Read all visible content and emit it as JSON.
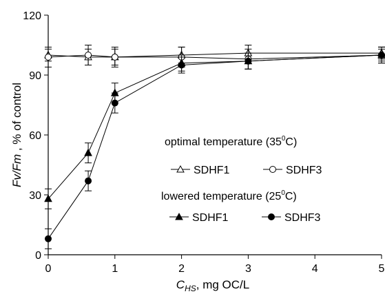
{
  "chart_data": {
    "type": "line",
    "xlabel": {
      "symbol": "C",
      "sub": "HS",
      "unit": ", mg OC/L"
    },
    "ylabel": {
      "part1": "Fv/Fm",
      "part2": " , % of control"
    },
    "xlim": [
      0,
      5
    ],
    "ylim": [
      0,
      120
    ],
    "xticks": [
      0,
      1,
      2,
      3,
      4,
      5
    ],
    "yticks": [
      0,
      30,
      60,
      90,
      120
    ],
    "xtick_labels": [
      "0",
      "1",
      "2",
      "3",
      "4",
      "5"
    ],
    "ytick_labels": [
      "0",
      "30",
      "60",
      "90",
      "120"
    ],
    "grid": false,
    "legend_placement": "center-right",
    "legend": {
      "group1_title": {
        "text": "optimal temperature (35",
        "sup": "0",
        "tail": "C)"
      },
      "group2_title": {
        "text": "lowered temperature (25",
        "sup": "0",
        "tail": "C)"
      }
    },
    "series": [
      {
        "name": "SDHF1",
        "group": "optimal",
        "marker": "triangle-open",
        "x": [
          0,
          0.6,
          1,
          2,
          3,
          5
        ],
        "y": [
          100,
          99,
          99,
          100,
          101,
          101
        ],
        "err": [
          3,
          4,
          4,
          4,
          4,
          3
        ]
      },
      {
        "name": "SDHF3",
        "group": "optimal",
        "marker": "circle-open",
        "x": [
          0,
          0.6,
          1,
          2,
          3,
          5
        ],
        "y": [
          99,
          100,
          99,
          99,
          98,
          100
        ],
        "err": [
          5,
          5,
          5,
          5,
          5,
          4
        ]
      },
      {
        "name": "SDHF1",
        "group": "lowered",
        "marker": "triangle-filled",
        "x": [
          0,
          0.6,
          1,
          2,
          3,
          5
        ],
        "y": [
          28,
          51,
          81,
          96,
          97,
          100
        ],
        "err": [
          5,
          5,
          5,
          4,
          4,
          3
        ]
      },
      {
        "name": "SDHF3",
        "group": "lowered",
        "marker": "circle-filled",
        "x": [
          0,
          0.6,
          1,
          2,
          3,
          5
        ],
        "y": [
          8,
          37,
          76,
          95,
          97,
          100
        ],
        "err": [
          5,
          5,
          5,
          4,
          4,
          4
        ]
      }
    ]
  }
}
